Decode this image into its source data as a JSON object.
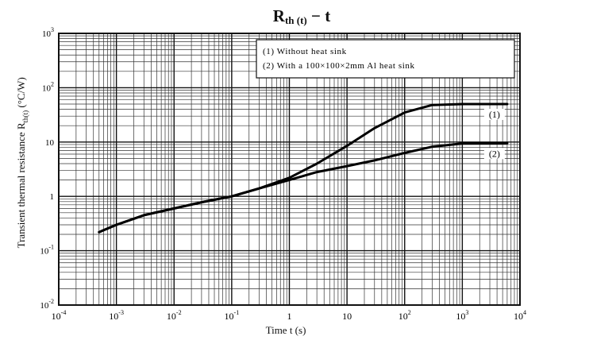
{
  "chart_data": {
    "type": "line",
    "title_main": "R",
    "title_sub": "th (t)",
    "title_tail": " − t",
    "xlabel": "Time t (s)",
    "ylabel_main": "Transient thermal resistance R",
    "ylabel_sub": "th(t)",
    "ylabel_unit": " (°C/W)",
    "xscale": "log",
    "yscale": "log",
    "xlim": [
      0.0001,
      10000
    ],
    "ylim": [
      0.01,
      1000
    ],
    "grid": true,
    "legend_position": "top-right",
    "x_tick_labels": [
      {
        "base": "10",
        "exp": "-4"
      },
      {
        "base": "10",
        "exp": "-3"
      },
      {
        "base": "10",
        "exp": "-2"
      },
      {
        "base": "10",
        "exp": "-1"
      },
      {
        "base": "1",
        "exp": ""
      },
      {
        "base": "10",
        "exp": ""
      },
      {
        "base": "10",
        "exp": "2"
      },
      {
        "base": "10",
        "exp": "3"
      },
      {
        "base": "10",
        "exp": "4"
      }
    ],
    "y_tick_labels": [
      {
        "base": "10",
        "exp": "-2"
      },
      {
        "base": "10",
        "exp": "-1"
      },
      {
        "base": "1",
        "exp": ""
      },
      {
        "base": "10",
        "exp": ""
      },
      {
        "base": "10",
        "exp": "2"
      },
      {
        "base": "10",
        "exp": "3"
      }
    ],
    "legend": [
      {
        "marker": "(1)",
        "text": "Without heat sink"
      },
      {
        "marker": "(2)",
        "text": "With a 100×100×2mm Al heat sink"
      }
    ],
    "series": [
      {
        "name": "(1)",
        "x": [
          0.0005,
          0.001,
          0.003,
          0.01,
          0.03,
          0.1,
          0.3,
          1,
          3,
          10,
          30,
          100,
          300,
          1000,
          6000
        ],
        "y": [
          0.22,
          0.3,
          0.45,
          0.6,
          0.78,
          1.0,
          1.4,
          2.2,
          4.0,
          8.5,
          18,
          35,
          48,
          50,
          50
        ]
      },
      {
        "name": "(2)",
        "x": [
          0.0005,
          0.001,
          0.003,
          0.01,
          0.03,
          0.1,
          0.3,
          1,
          3,
          10,
          30,
          100,
          300,
          1000,
          6000
        ],
        "y": [
          0.22,
          0.3,
          0.45,
          0.6,
          0.78,
          1.0,
          1.4,
          2.0,
          2.8,
          3.6,
          4.6,
          6.3,
          8.2,
          9.4,
          9.5
        ]
      }
    ]
  }
}
